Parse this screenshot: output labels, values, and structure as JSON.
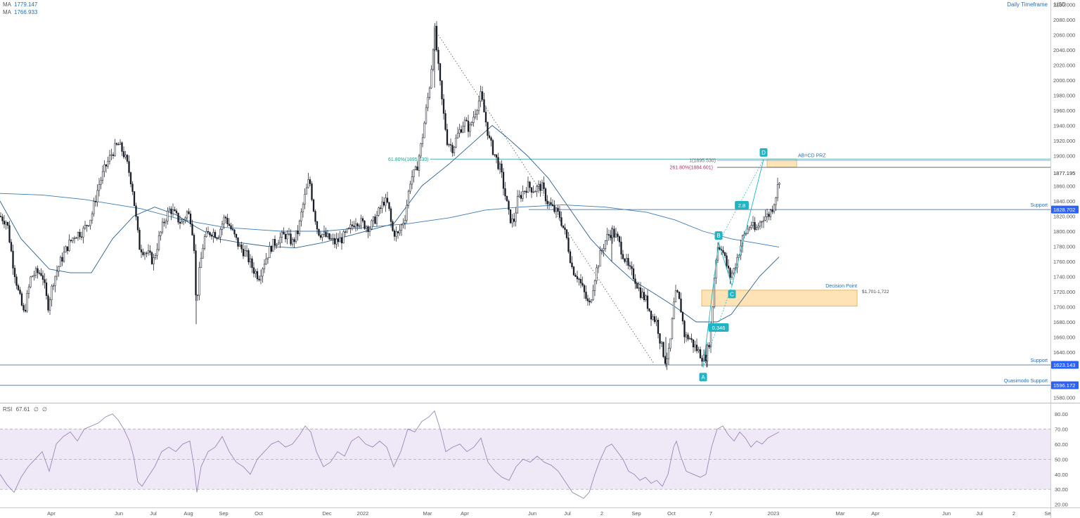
{
  "legend": {
    "ma1_label": "MA",
    "ma1_value": "1779.147",
    "ma2_label": "MA",
    "ma2_value": "1766.933",
    "rsi_label": "RSI",
    "rsi_value": "67.61",
    "rsi_extra1": "∅",
    "rsi_extra2": "∅"
  },
  "timeframe": "Daily Timeframe",
  "currency": "USD",
  "colors": {
    "candle": "#131722",
    "ma_line": "#2f5f8c",
    "level_line": "#3a5a85",
    "fib_line": "#3fa6a6",
    "pattern": "#1fb5c4",
    "zone_fill": "#fde3b5",
    "zone_stroke": "#e8b86a",
    "rsi_line": "#9a87b8",
    "rsi_band": "#efe9f7",
    "label_bg": "#2962ff"
  },
  "chart_data": {
    "type": "candlestick",
    "x_ticks": [
      "Apr",
      "Jun",
      "Jul",
      "Aug",
      "Sep",
      "Oct",
      "Dec",
      "2022",
      "Mar",
      "Apr",
      "Jun",
      "Jul",
      "2",
      "Sep",
      "Oct",
      "7",
      "2023",
      "Mar",
      "Apr",
      "Jun",
      "Jul",
      "2",
      "Se"
    ],
    "y_ticks": [
      "2100.000",
      "2080.000",
      "2060.000",
      "2040.000",
      "2020.000",
      "2000.000",
      "1980.000",
      "1960.000",
      "1940.000",
      "1920.000",
      "1900.000",
      "1877.195",
      "1860.000",
      "1840.000",
      "1828.702",
      "1820.000",
      "1800.000",
      "1780.000",
      "1760.000",
      "1740.000",
      "1720.000",
      "1700.000",
      "1680.000",
      "1660.000",
      "1640.000",
      "1623.143",
      "1596.172",
      "1580.000"
    ],
    "ylim": [
      1574,
      2106
    ],
    "price_path": [
      [
        0,
        1820
      ],
      [
        10,
        1812
      ],
      [
        18,
        1760
      ],
      [
        26,
        1720
      ],
      [
        34,
        1690
      ],
      [
        44,
        1740
      ],
      [
        52,
        1745
      ],
      [
        60,
        1745
      ],
      [
        68,
        1700
      ],
      [
        76,
        1735
      ],
      [
        86,
        1760
      ],
      [
        96,
        1780
      ],
      [
        106,
        1795
      ],
      [
        118,
        1800
      ],
      [
        130,
        1820
      ],
      [
        140,
        1860
      ],
      [
        150,
        1885
      ],
      [
        160,
        1905
      ],
      [
        168,
        1915
      ],
      [
        175,
        1905
      ],
      [
        182,
        1885
      ],
      [
        188,
        1860
      ],
      [
        193,
        1820
      ],
      [
        198,
        1780
      ],
      [
        204,
        1775
      ],
      [
        210,
        1770
      ],
      [
        218,
        1760
      ],
      [
        226,
        1790
      ],
      [
        234,
        1815
      ],
      [
        242,
        1830
      ],
      [
        250,
        1820
      ],
      [
        258,
        1810
      ],
      [
        266,
        1825
      ],
      [
        272,
        1815
      ],
      [
        276,
        1780
      ],
      [
        279,
        1700
      ],
      [
        284,
        1750
      ],
      [
        290,
        1790
      ],
      [
        300,
        1800
      ],
      [
        310,
        1795
      ],
      [
        320,
        1820
      ],
      [
        330,
        1800
      ],
      [
        340,
        1780
      ],
      [
        350,
        1770
      ],
      [
        360,
        1750
      ],
      [
        368,
        1740
      ],
      [
        376,
        1760
      ],
      [
        386,
        1780
      ],
      [
        396,
        1790
      ],
      [
        406,
        1795
      ],
      [
        416,
        1785
      ],
      [
        424,
        1800
      ],
      [
        432,
        1840
      ],
      [
        440,
        1870
      ],
      [
        446,
        1830
      ],
      [
        452,
        1800
      ],
      [
        460,
        1795
      ],
      [
        468,
        1790
      ],
      [
        476,
        1785
      ],
      [
        486,
        1790
      ],
      [
        496,
        1800
      ],
      [
        506,
        1815
      ],
      [
        516,
        1810
      ],
      [
        526,
        1805
      ],
      [
        536,
        1820
      ],
      [
        546,
        1840
      ],
      [
        552,
        1835
      ],
      [
        558,
        1800
      ],
      [
        566,
        1795
      ],
      [
        576,
        1820
      ],
      [
        584,
        1870
      ],
      [
        592,
        1880
      ],
      [
        600,
        1920
      ],
      [
        606,
        1960
      ],
      [
        612,
        2000
      ],
      [
        618,
        2070
      ],
      [
        624,
        2010
      ],
      [
        630,
        1960
      ],
      [
        636,
        1920
      ],
      [
        644,
        1910
      ],
      [
        652,
        1930
      ],
      [
        660,
        1945
      ],
      [
        668,
        1935
      ],
      [
        676,
        1960
      ],
      [
        684,
        1980
      ],
      [
        690,
        1950
      ],
      [
        696,
        1920
      ],
      [
        704,
        1900
      ],
      [
        712,
        1880
      ],
      [
        718,
        1850
      ],
      [
        724,
        1820
      ],
      [
        730,
        1810
      ],
      [
        736,
        1840
      ],
      [
        742,
        1850
      ],
      [
        750,
        1860
      ],
      [
        760,
        1855
      ],
      [
        770,
        1860
      ],
      [
        778,
        1840
      ],
      [
        786,
        1830
      ],
      [
        796,
        1820
      ],
      [
        806,
        1790
      ],
      [
        814,
        1750
      ],
      [
        822,
        1740
      ],
      [
        830,
        1720
      ],
      [
        838,
        1700
      ],
      [
        846,
        1740
      ],
      [
        854,
        1770
      ],
      [
        862,
        1790
      ],
      [
        870,
        1800
      ],
      [
        878,
        1790
      ],
      [
        886,
        1770
      ],
      [
        894,
        1750
      ],
      [
        902,
        1740
      ],
      [
        910,
        1720
      ],
      [
        918,
        1710
      ],
      [
        926,
        1690
      ],
      [
        934,
        1680
      ],
      [
        940,
        1650
      ],
      [
        946,
        1630
      ],
      [
        952,
        1640
      ],
      [
        958,
        1700
      ],
      [
        962,
        1720
      ],
      [
        968,
        1700
      ],
      [
        974,
        1660
      ],
      [
        980,
        1660
      ],
      [
        986,
        1650
      ],
      [
        994,
        1640
      ],
      [
        1002,
        1630
      ],
      [
        1008,
        1650
      ],
      [
        1012,
        1680
      ],
      [
        1016,
        1740
      ],
      [
        1020,
        1780
      ],
      [
        1026,
        1780
      ],
      [
        1032,
        1760
      ],
      [
        1038,
        1740
      ],
      [
        1044,
        1750
      ],
      [
        1050,
        1770
      ],
      [
        1056,
        1790
      ],
      [
        1062,
        1800
      ],
      [
        1068,
        1810
      ],
      [
        1074,
        1800
      ],
      [
        1080,
        1810
      ],
      [
        1086,
        1820
      ],
      [
        1092,
        1820
      ],
      [
        1098,
        1830
      ],
      [
        1104,
        1850
      ],
      [
        1110,
        1877
      ]
    ],
    "ma_fast_path": [
      [
        0,
        1840
      ],
      [
        30,
        1790
      ],
      [
        70,
        1750
      ],
      [
        100,
        1745
      ],
      [
        130,
        1745
      ],
      [
        160,
        1790
      ],
      [
        190,
        1820
      ],
      [
        220,
        1832
      ],
      [
        250,
        1822
      ],
      [
        280,
        1805
      ],
      [
        310,
        1790
      ],
      [
        340,
        1785
      ],
      [
        380,
        1780
      ],
      [
        420,
        1778
      ],
      [
        460,
        1785
      ],
      [
        500,
        1795
      ],
      [
        540,
        1805
      ],
      [
        560,
        1810
      ],
      [
        600,
        1860
      ],
      [
        640,
        1890
      ],
      [
        670,
        1915
      ],
      [
        700,
        1940
      ],
      [
        720,
        1925
      ],
      [
        750,
        1900
      ],
      [
        780,
        1870
      ],
      [
        810,
        1830
      ],
      [
        840,
        1790
      ],
      [
        870,
        1760
      ],
      [
        900,
        1735
      ],
      [
        930,
        1718
      ],
      [
        960,
        1700
      ],
      [
        990,
        1680
      ],
      [
        1020,
        1680
      ],
      [
        1040,
        1690
      ],
      [
        1060,
        1715
      ],
      [
        1080,
        1740
      ],
      [
        1108,
        1766
      ]
    ],
    "ma_slow_path": [
      [
        0,
        1850
      ],
      [
        60,
        1848
      ],
      [
        120,
        1842
      ],
      [
        200,
        1830
      ],
      [
        260,
        1815
      ],
      [
        320,
        1805
      ],
      [
        400,
        1800
      ],
      [
        460,
        1800
      ],
      [
        520,
        1805
      ],
      [
        580,
        1810
      ],
      [
        640,
        1818
      ],
      [
        690,
        1828
      ],
      [
        740,
        1832
      ],
      [
        800,
        1835
      ],
      [
        860,
        1832
      ],
      [
        920,
        1825
      ],
      [
        960,
        1815
      ],
      [
        1000,
        1800
      ],
      [
        1040,
        1790
      ],
      [
        1108,
        1779
      ]
    ],
    "levels": [
      {
        "price": 1828.702,
        "label": "Support",
        "tag": "1828.702"
      },
      {
        "price": 1623.143,
        "label": "Support",
        "tag": "1623.143"
      },
      {
        "price": 1596.172,
        "label": "Quasimodo Support",
        "tag": "1596.172"
      }
    ],
    "current_price": "1877.195",
    "fib_levels": [
      {
        "price": 1895.53,
        "label": "61.80%(1895.530)"
      },
      {
        "price": 1895.53,
        "label": "1(1895.530)"
      },
      {
        "price": 1884.601,
        "label": "261.80%(1884.601)"
      }
    ],
    "zones": [
      {
        "label": "AB=CD PRZ",
        "price_low": 1884.6,
        "price_high": 1895.5
      },
      {
        "label": "Decision Point",
        "note": "$1,701-1,722",
        "price_low": 1701,
        "price_high": 1722
      }
    ],
    "pattern_points": [
      {
        "name": "A",
        "price": 1620
      },
      {
        "name": "B",
        "price": 1785
      },
      {
        "name": "C",
        "price": 1728
      },
      {
        "name": "D",
        "price": 1895
      }
    ],
    "pattern_ratios": [
      "2.8",
      "0.346"
    ],
    "rsi": {
      "ticks": [
        "80.00",
        "70.00",
        "60.00",
        "50.00",
        "40.00",
        "30.00",
        "20.00"
      ],
      "ylim": [
        18,
        86
      ],
      "band": [
        30,
        70
      ],
      "path": [
        [
          0,
          40
        ],
        [
          10,
          33
        ],
        [
          20,
          28
        ],
        [
          30,
          38
        ],
        [
          40,
          45
        ],
        [
          50,
          50
        ],
        [
          60,
          55
        ],
        [
          70,
          42
        ],
        [
          80,
          60
        ],
        [
          90,
          65
        ],
        [
          100,
          68
        ],
        [
          110,
          62
        ],
        [
          120,
          70
        ],
        [
          130,
          72
        ],
        [
          140,
          74
        ],
        [
          150,
          78
        ],
        [
          160,
          80
        ],
        [
          168,
          76
        ],
        [
          176,
          70
        ],
        [
          184,
          62
        ],
        [
          190,
          52
        ],
        [
          196,
          35
        ],
        [
          202,
          32
        ],
        [
          210,
          38
        ],
        [
          220,
          45
        ],
        [
          230,
          55
        ],
        [
          240,
          58
        ],
        [
          250,
          55
        ],
        [
          260,
          60
        ],
        [
          270,
          62
        ],
        [
          276,
          45
        ],
        [
          280,
          28
        ],
        [
          286,
          45
        ],
        [
          296,
          55
        ],
        [
          306,
          58
        ],
        [
          316,
          65
        ],
        [
          326,
          55
        ],
        [
          336,
          48
        ],
        [
          346,
          45
        ],
        [
          356,
          40
        ],
        [
          366,
          50
        ],
        [
          376,
          55
        ],
        [
          386,
          60
        ],
        [
          396,
          62
        ],
        [
          406,
          58
        ],
        [
          416,
          60
        ],
        [
          426,
          66
        ],
        [
          434,
          72
        ],
        [
          442,
          68
        ],
        [
          450,
          55
        ],
        [
          460,
          45
        ],
        [
          470,
          48
        ],
        [
          480,
          55
        ],
        [
          490,
          52
        ],
        [
          500,
          62
        ],
        [
          510,
          65
        ],
        [
          520,
          60
        ],
        [
          530,
          58
        ],
        [
          540,
          62
        ],
        [
          550,
          58
        ],
        [
          560,
          45
        ],
        [
          570,
          55
        ],
        [
          580,
          70
        ],
        [
          590,
          68
        ],
        [
          600,
          75
        ],
        [
          610,
          78
        ],
        [
          618,
          82
        ],
        [
          626,
          70
        ],
        [
          634,
          55
        ],
        [
          644,
          58
        ],
        [
          654,
          60
        ],
        [
          664,
          55
        ],
        [
          674,
          58
        ],
        [
          684,
          64
        ],
        [
          694,
          48
        ],
        [
          704,
          42
        ],
        [
          714,
          38
        ],
        [
          724,
          36
        ],
        [
          734,
          45
        ],
        [
          744,
          50
        ],
        [
          754,
          48
        ],
        [
          764,
          52
        ],
        [
          774,
          48
        ],
        [
          784,
          46
        ],
        [
          794,
          42
        ],
        [
          804,
          35
        ],
        [
          814,
          28
        ],
        [
          822,
          26
        ],
        [
          830,
          24
        ],
        [
          838,
          28
        ],
        [
          846,
          40
        ],
        [
          854,
          50
        ],
        [
          862,
          58
        ],
        [
          870,
          60
        ],
        [
          878,
          55
        ],
        [
          886,
          50
        ],
        [
          894,
          42
        ],
        [
          902,
          40
        ],
        [
          910,
          36
        ],
        [
          918,
          38
        ],
        [
          926,
          34
        ],
        [
          934,
          36
        ],
        [
          942,
          32
        ],
        [
          950,
          40
        ],
        [
          958,
          58
        ],
        [
          962,
          62
        ],
        [
          968,
          52
        ],
        [
          976,
          42
        ],
        [
          986,
          40
        ],
        [
          996,
          38
        ],
        [
          1004,
          40
        ],
        [
          1012,
          58
        ],
        [
          1020,
          70
        ],
        [
          1028,
          72
        ],
        [
          1036,
          66
        ],
        [
          1044,
          62
        ],
        [
          1052,
          68
        ],
        [
          1060,
          64
        ],
        [
          1068,
          58
        ],
        [
          1076,
          62
        ],
        [
          1084,
          60
        ],
        [
          1092,
          64
        ],
        [
          1100,
          66
        ],
        [
          1108,
          68
        ]
      ]
    }
  }
}
